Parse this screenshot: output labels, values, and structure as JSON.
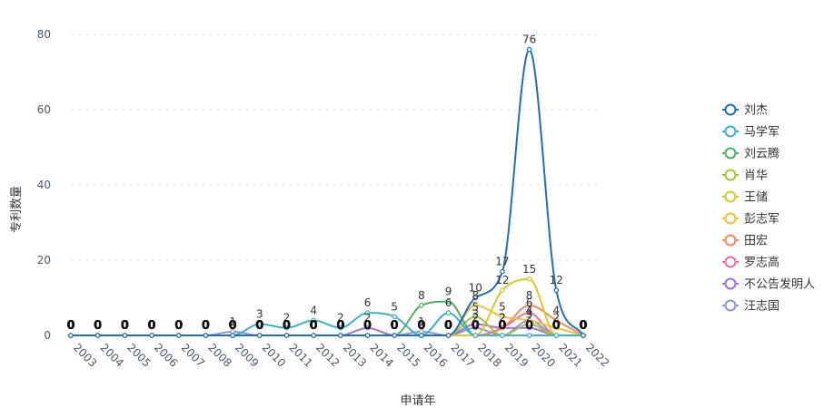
{
  "chart_data": {
    "type": "line",
    "xlabel": "申请年",
    "ylabel": "专利数量",
    "ylim": [
      0,
      80
    ],
    "yticks": [
      0,
      20,
      40,
      60,
      80
    ],
    "grid": true,
    "legend_position": "right",
    "categories": [
      "2003",
      "2004",
      "2005",
      "2006",
      "2007",
      "2008",
      "2009",
      "2010",
      "2011",
      "2012",
      "2013",
      "2014",
      "2015",
      "2016",
      "2017",
      "2018",
      "2019",
      "2020",
      "2021",
      "2022"
    ],
    "series": [
      {
        "name": "刘杰",
        "color": "#1f6fba",
        "values": [
          0,
          0,
          0,
          0,
          0,
          0,
          0,
          0,
          0,
          0,
          0,
          0,
          0,
          0,
          0,
          10,
          17,
          76,
          12,
          0
        ]
      },
      {
        "name": "马学军",
        "color": "#3bb3c9",
        "values": [
          0,
          0,
          0,
          0,
          0,
          0,
          0,
          3,
          2,
          4,
          2,
          6,
          5,
          0,
          6,
          0,
          0,
          0,
          0,
          0
        ]
      },
      {
        "name": "刘云腾",
        "color": "#4db35a",
        "values": [
          0,
          0,
          0,
          0,
          0,
          0,
          0,
          0,
          0,
          0,
          0,
          0,
          0,
          8,
          9,
          0,
          0,
          0,
          0,
          0
        ]
      },
      {
        "name": "肖华",
        "color": "#a8c23a",
        "values": [
          0,
          0,
          0,
          0,
          0,
          0,
          0,
          0,
          0,
          0,
          0,
          0,
          0,
          0,
          0,
          5,
          0,
          3,
          0,
          0
        ]
      },
      {
        "name": "王储",
        "color": "#d9c828",
        "values": [
          0,
          0,
          0,
          0,
          0,
          0,
          0,
          0,
          0,
          0,
          0,
          0,
          0,
          0,
          0,
          0,
          12,
          15,
          0,
          0
        ]
      },
      {
        "name": "彭志军",
        "color": "#f0c040",
        "values": [
          0,
          0,
          0,
          0,
          0,
          0,
          0,
          0,
          0,
          0,
          0,
          0,
          0,
          0,
          0,
          8,
          5,
          4,
          2,
          0
        ]
      },
      {
        "name": "田宏",
        "color": "#f08a60",
        "values": [
          0,
          0,
          0,
          0,
          0,
          0,
          0,
          0,
          0,
          0,
          0,
          0,
          0,
          0,
          0,
          0,
          2,
          8,
          4,
          0
        ]
      },
      {
        "name": "罗志高",
        "color": "#e870a0",
        "values": [
          0,
          0,
          0,
          0,
          0,
          0,
          0,
          0,
          0,
          0,
          0,
          0,
          0,
          0,
          0,
          0,
          2,
          6,
          0,
          0
        ]
      },
      {
        "name": "不公告发明人",
        "color": "#a56ee0",
        "values": [
          0,
          0,
          0,
          0,
          0,
          0,
          0,
          0,
          0,
          0,
          0,
          2,
          0,
          0,
          0,
          3,
          2,
          2,
          0,
          0
        ]
      },
      {
        "name": "汪志国",
        "color": "#8a96e0",
        "values": [
          0,
          0,
          0,
          0,
          0,
          0,
          1,
          0,
          0,
          0,
          0,
          0,
          0,
          1,
          0,
          2,
          0,
          4,
          0,
          0
        ]
      }
    ]
  }
}
